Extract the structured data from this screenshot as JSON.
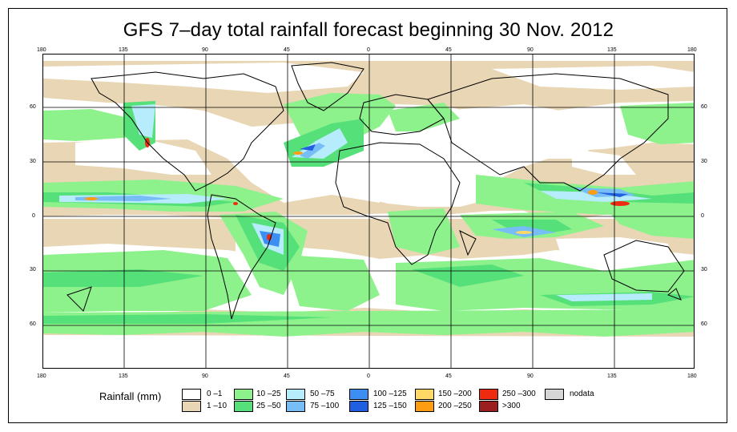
{
  "title": "GFS 7–day total rainfall forecast beginning 30 Nov. 2012",
  "map": {
    "lon_ticks_top": [
      "180",
      "135",
      "90",
      "45",
      "0",
      "45",
      "90",
      "135",
      "180"
    ],
    "lon_ticks_bottom": [
      "180",
      "135",
      "90",
      "45",
      "0",
      "45",
      "90",
      "135",
      "180"
    ],
    "lat_ticks_left": [
      "60",
      "30",
      "0",
      "30",
      "60"
    ],
    "lat_ticks_right": [
      "60",
      "30",
      "0",
      "30",
      "60"
    ]
  },
  "legend": {
    "title": "Rainfall (mm)",
    "items": [
      {
        "label": "0 –1",
        "color": "#ffffff"
      },
      {
        "label": "1 –10",
        "color": "#e8d6b4"
      },
      {
        "label": "10 –25",
        "color": "#8df28c"
      },
      {
        "label": "25 –50",
        "color": "#55e07a"
      },
      {
        "label": "50 –75",
        "color": "#b6ecfb"
      },
      {
        "label": "75 –100",
        "color": "#77bdf6"
      },
      {
        "label": "100 –125",
        "color": "#3d8ef2"
      },
      {
        "label": "125 –150",
        "color": "#1f5fe0"
      },
      {
        "label": "150 –200",
        "color": "#ffd866"
      },
      {
        "label": "200 –250",
        "color": "#ff9d12"
      },
      {
        "label": "250 –300",
        "color": "#ee2b10"
      },
      {
        "label": ">300",
        "color": "#9b1f1f"
      },
      {
        "label": "nodata",
        "color": "#d6d6d6"
      }
    ]
  }
}
